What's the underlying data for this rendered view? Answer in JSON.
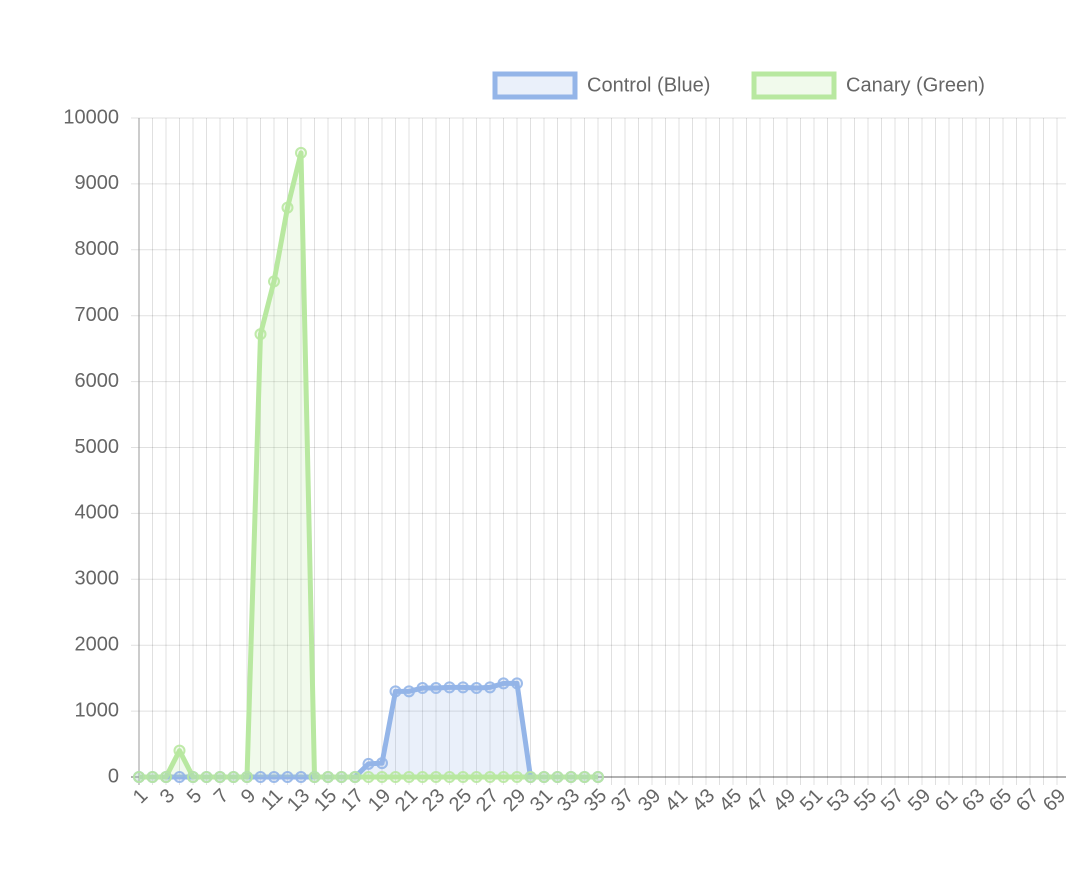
{
  "chart_data": {
    "type": "line",
    "categories": [
      "1",
      null,
      "3",
      null,
      "5",
      null,
      "7",
      null,
      "9",
      null,
      "11",
      null,
      "13",
      null,
      "15",
      null,
      "17",
      null,
      "19",
      null,
      "21",
      null,
      "23",
      null,
      "25",
      null,
      "27",
      null,
      "29",
      null,
      "31",
      null,
      "33",
      null,
      "35",
      null,
      "37",
      null,
      "39",
      null,
      "41",
      null,
      "43",
      null,
      "45",
      null,
      "47",
      null,
      "49",
      null,
      "51",
      null,
      "53",
      null,
      "55",
      null,
      "57",
      null,
      "59",
      null,
      "61",
      null,
      "63",
      null,
      "65",
      null,
      "67",
      null,
      "69"
    ],
    "series": [
      {
        "name": "Control (Blue)",
        "color": "#94b5e8",
        "fill": "rgba(148,181,232,0.2)",
        "values": [
          0,
          0,
          0,
          0,
          0,
          0,
          0,
          0,
          0,
          0,
          0,
          0,
          0,
          0,
          0,
          0,
          0,
          200,
          210,
          1300,
          1300,
          1350,
          1350,
          1360,
          1360,
          1350,
          1360,
          1420,
          1420,
          0,
          0,
          0,
          0,
          0,
          0,
          null,
          null,
          null,
          null,
          null,
          null,
          null,
          null,
          null,
          null,
          null,
          null,
          null,
          null,
          null,
          null,
          null,
          null,
          null,
          null,
          null,
          null,
          null,
          null,
          null,
          null,
          null,
          null,
          null,
          null,
          null,
          null,
          null,
          null
        ]
      },
      {
        "name": "Canary (Green)",
        "color": "#b8e8a0",
        "fill": "rgba(184,232,160,0.2)",
        "values": [
          0,
          0,
          0,
          400,
          0,
          0,
          0,
          0,
          0,
          6720,
          7520,
          8640,
          9470,
          0,
          0,
          0,
          0,
          0,
          0,
          0,
          0,
          0,
          0,
          0,
          0,
          0,
          0,
          0,
          0,
          0,
          0,
          0,
          0,
          0,
          0,
          null,
          null,
          null,
          null,
          null,
          null,
          null,
          null,
          null,
          null,
          null,
          null,
          null,
          null,
          null,
          null,
          null,
          null,
          null,
          null,
          null,
          null,
          null,
          null,
          null,
          null,
          null,
          null,
          null,
          null,
          null,
          null,
          null,
          null
        ]
      }
    ],
    "ylim": [
      0,
      10000
    ],
    "yticks": [
      0,
      1000,
      2000,
      3000,
      4000,
      5000,
      6000,
      7000,
      8000,
      9000,
      10000
    ],
    "grid": true,
    "legend": "top"
  }
}
